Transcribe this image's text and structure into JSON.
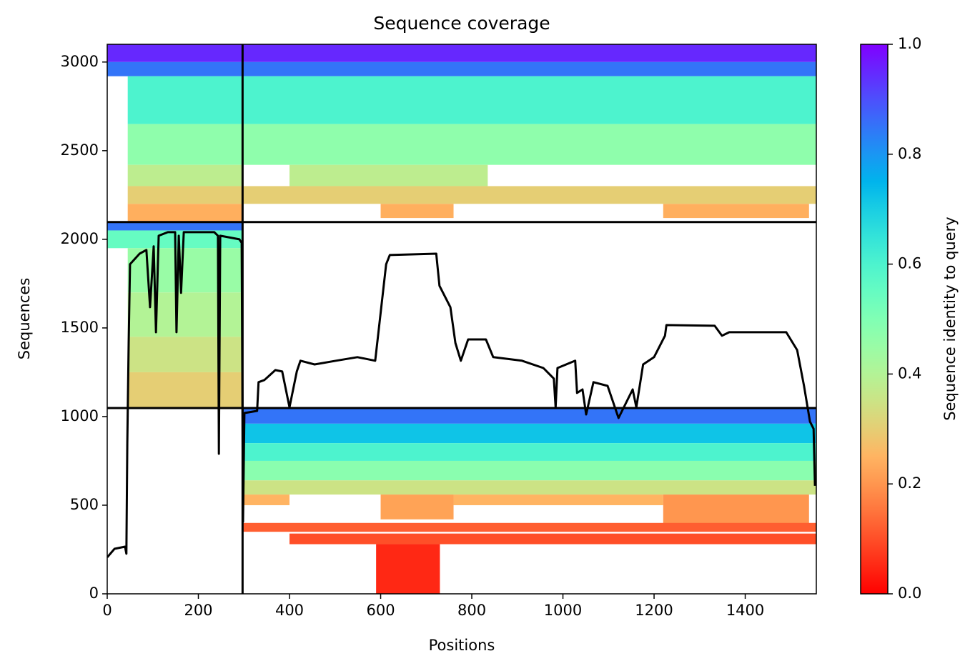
{
  "chart_data": {
    "type": "msa_coverage",
    "title": "Sequence coverage",
    "xlabel": "Positions",
    "ylabel": "Sequences",
    "colorbar_label": "Sequence identity to query",
    "colormap": "rainbow_r",
    "xlim": [
      0,
      1556
    ],
    "ylim": [
      0,
      3100
    ],
    "xticks": [
      0,
      200,
      400,
      600,
      800,
      1000,
      1200,
      1400
    ],
    "yticks": [
      0,
      500,
      1000,
      1500,
      2000,
      2500,
      3000
    ],
    "clim": [
      0,
      1
    ],
    "cticks": [
      {
        "value": 0,
        "label": "0.0"
      },
      {
        "value": 0.2,
        "label": "0.2"
      },
      {
        "value": 0.4,
        "label": "0.4"
      },
      {
        "value": 0.6,
        "label": "0.6"
      },
      {
        "value": 0.8,
        "label": "0.8"
      },
      {
        "value": 1,
        "label": "1.0"
      }
    ],
    "chain_boundaries": {
      "x": [
        297
      ],
      "y": [
        1048,
        2097
      ]
    },
    "cells": [
      {
        "x0": 0,
        "x1": 1556,
        "y0": 3000,
        "y1": 3100,
        "identity": 0.95
      },
      {
        "x0": 0,
        "x1": 1556,
        "y0": 2920,
        "y1": 3000,
        "identity": 0.85
      },
      {
        "x0": 45,
        "x1": 1556,
        "y0": 2650,
        "y1": 2920,
        "identity": 0.6
      },
      {
        "x0": 45,
        "x1": 1556,
        "y0": 2420,
        "y1": 2650,
        "identity": 0.47
      },
      {
        "x0": 45,
        "x1": 297,
        "y0": 2300,
        "y1": 2420,
        "identity": 0.38
      },
      {
        "x0": 400,
        "x1": 835,
        "y0": 2300,
        "y1": 2420,
        "identity": 0.38
      },
      {
        "x0": 45,
        "x1": 1556,
        "y0": 2200,
        "y1": 2300,
        "identity": 0.3
      },
      {
        "x0": 45,
        "x1": 297,
        "y0": 2100,
        "y1": 2200,
        "identity": 0.24
      },
      {
        "x0": 600,
        "x1": 760,
        "y0": 2120,
        "y1": 2200,
        "identity": 0.24
      },
      {
        "x0": 1220,
        "x1": 1540,
        "y0": 2120,
        "y1": 2200,
        "identity": 0.24
      },
      {
        "x0": 0,
        "x1": 297,
        "y0": 2050,
        "y1": 2097,
        "identity": 0.85
      },
      {
        "x0": 0,
        "x1": 297,
        "y0": 1950,
        "y1": 2050,
        "identity": 0.55
      },
      {
        "x0": 45,
        "x1": 297,
        "y0": 1700,
        "y1": 1950,
        "identity": 0.45
      },
      {
        "x0": 45,
        "x1": 297,
        "y0": 1450,
        "y1": 1700,
        "identity": 0.4
      },
      {
        "x0": 45,
        "x1": 297,
        "y0": 1250,
        "y1": 1450,
        "identity": 0.35
      },
      {
        "x0": 45,
        "x1": 297,
        "y0": 1048,
        "y1": 1250,
        "identity": 0.3
      },
      {
        "x0": 297,
        "x1": 1556,
        "y0": 960,
        "y1": 1048,
        "identity": 0.85
      },
      {
        "x0": 297,
        "x1": 1556,
        "y0": 850,
        "y1": 960,
        "identity": 0.72
      },
      {
        "x0": 297,
        "x1": 1556,
        "y0": 750,
        "y1": 850,
        "identity": 0.6
      },
      {
        "x0": 297,
        "x1": 1556,
        "y0": 640,
        "y1": 750,
        "identity": 0.48
      },
      {
        "x0": 297,
        "x1": 1556,
        "y0": 560,
        "y1": 640,
        "identity": 0.35
      },
      {
        "x0": 297,
        "x1": 400,
        "y0": 500,
        "y1": 560,
        "identity": 0.25
      },
      {
        "x0": 600,
        "x1": 760,
        "y0": 420,
        "y1": 560,
        "identity": 0.22
      },
      {
        "x0": 760,
        "x1": 1220,
        "y0": 500,
        "y1": 560,
        "identity": 0.25
      },
      {
        "x0": 1220,
        "x1": 1540,
        "y0": 390,
        "y1": 560,
        "identity": 0.2
      },
      {
        "x0": 297,
        "x1": 1556,
        "y0": 350,
        "y1": 400,
        "identity": 0.12
      },
      {
        "x0": 400,
        "x1": 1556,
        "y0": 280,
        "y1": 340,
        "identity": 0.1
      },
      {
        "x0": 590,
        "x1": 730,
        "y0": 0,
        "y1": 280,
        "identity": 0.05
      }
    ],
    "coverage": {
      "color": "#000000",
      "x": [
        0,
        16,
        39,
        42,
        44,
        47,
        50,
        71,
        86,
        94,
        102,
        107,
        113,
        133,
        149,
        152,
        157,
        162,
        168,
        235,
        243,
        245,
        248,
        290,
        295,
        298,
        301,
        329,
        332,
        345,
        369,
        384,
        400,
        416,
        424,
        455,
        502,
        549,
        588,
        596,
        612,
        620,
        722,
        729,
        753,
        764,
        776,
        792,
        831,
        847,
        910,
        957,
        980,
        984,
        988,
        1027,
        1031,
        1043,
        1051,
        1067,
        1098,
        1122,
        1153,
        1161,
        1176,
        1200,
        1224,
        1227,
        1333,
        1349,
        1365,
        1490,
        1514,
        1529,
        1542,
        1550,
        1553
      ],
      "y": [
        206,
        254,
        266,
        226,
        851,
        1415,
        1859,
        1919,
        1940,
        1617,
        1960,
        1476,
        2020,
        2040,
        2040,
        1476,
        2020,
        1698,
        2040,
        2040,
        2020,
        790,
        2020,
        2000,
        1980,
        407,
        1020,
        1032,
        1194,
        1206,
        1262,
        1254,
        1052,
        1254,
        1315,
        1294,
        1315,
        1335,
        1315,
        1496,
        1859,
        1911,
        1919,
        1738,
        1617,
        1415,
        1315,
        1435,
        1435,
        1335,
        1315,
        1274,
        1214,
        1052,
        1274,
        1315,
        1133,
        1153,
        1012,
        1194,
        1173,
        992,
        1153,
        1052,
        1294,
        1335,
        1456,
        1516,
        1512,
        1456,
        1476,
        1476,
        1375,
        1173,
        972,
        931,
        609
      ]
    }
  }
}
